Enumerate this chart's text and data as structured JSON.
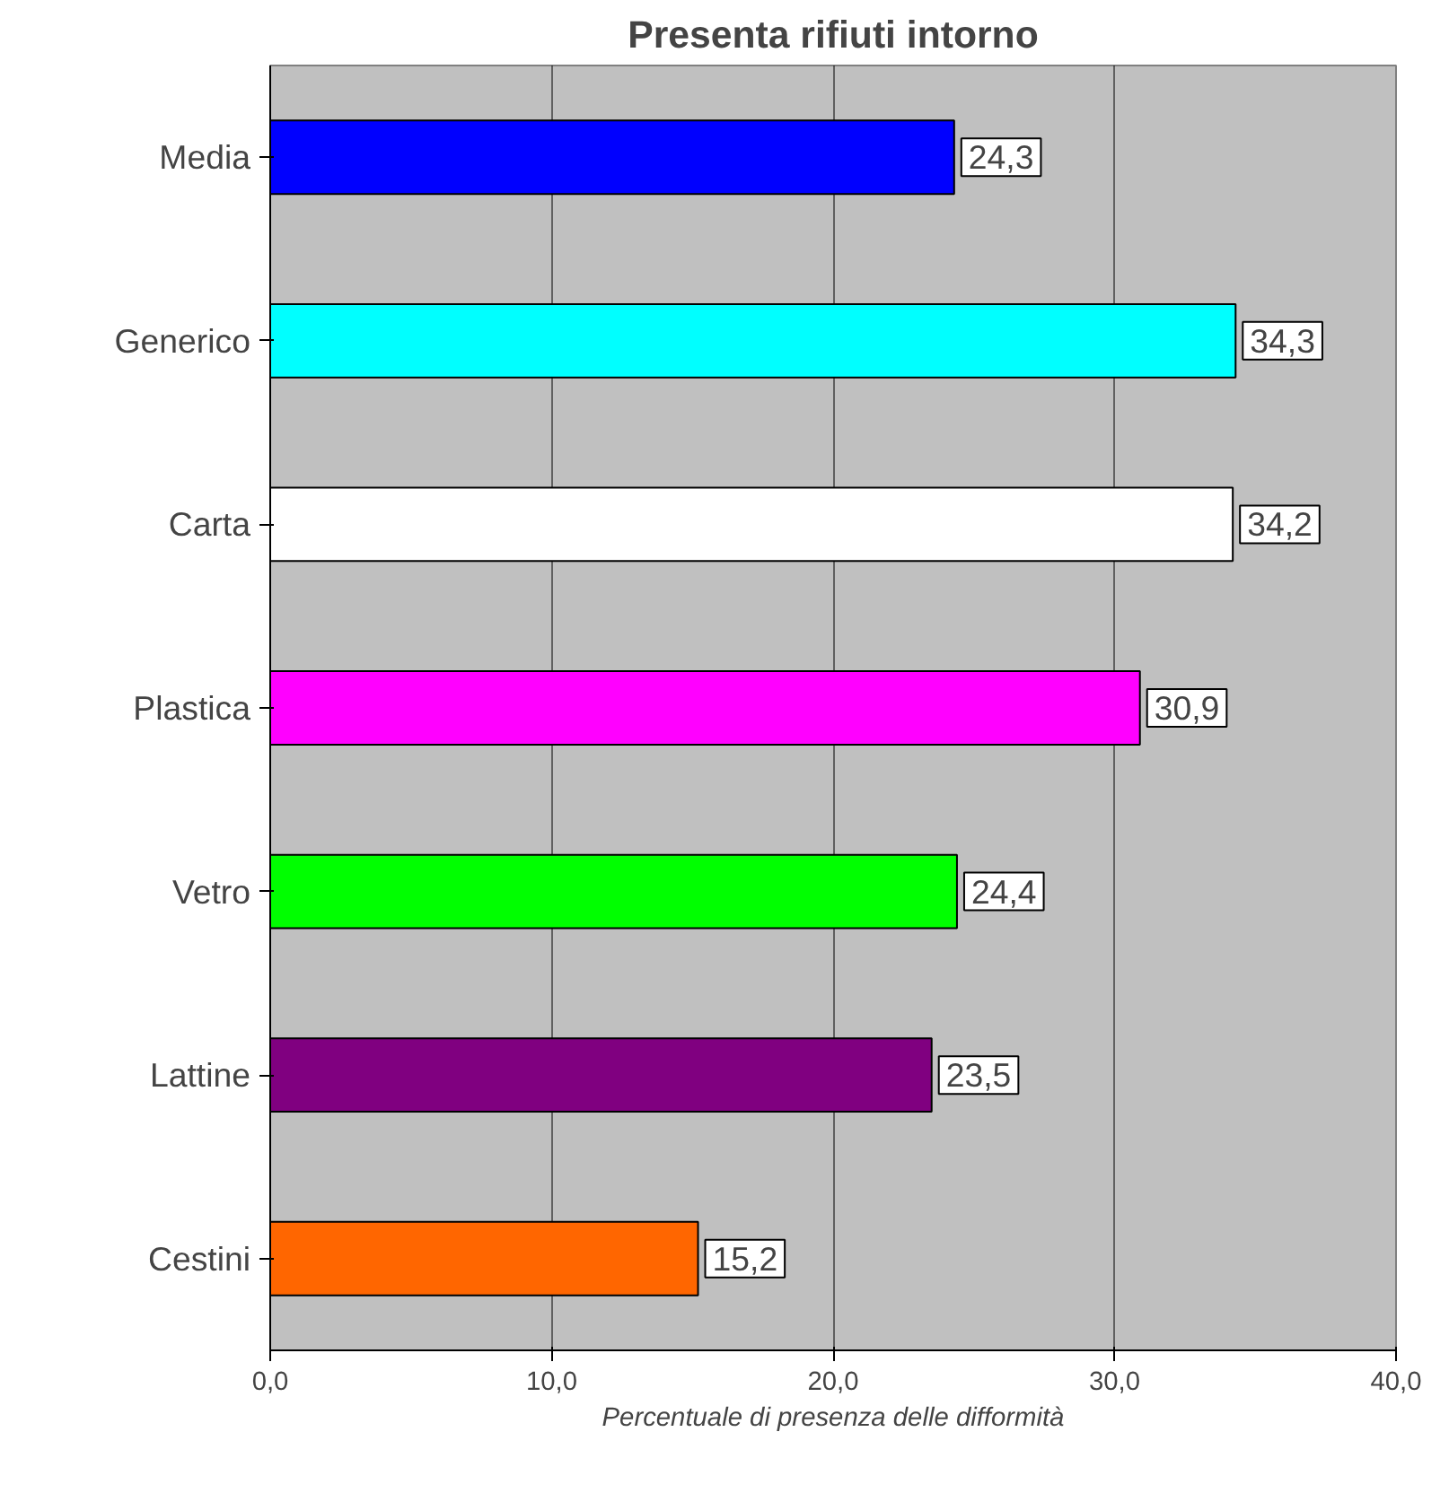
{
  "chart_data": {
    "type": "bar",
    "orientation": "horizontal",
    "title": "Presenta rifiuti intorno",
    "xlabel": "Percentuale di presenza delle difformità",
    "categories": [
      "Media",
      "Generico",
      "Carta",
      "Plastica",
      "Vetro",
      "Lattine",
      "Cestini"
    ],
    "values": [
      24.3,
      34.3,
      34.2,
      30.9,
      24.4,
      23.5,
      15.2
    ],
    "colors": [
      "#0000ff",
      "#00ffff",
      "#ffffff",
      "#ff00ff",
      "#00ff00",
      "#800080",
      "#ff6600"
    ],
    "value_labels": [
      "24,3",
      "34,3",
      "34,2",
      "30,9",
      "24,4",
      "23,5",
      "15,2"
    ],
    "xlim": [
      0,
      40
    ],
    "xticks": [
      {
        "value": 0,
        "label": "0,0"
      },
      {
        "value": 10,
        "label": "10,0"
      },
      {
        "value": 20,
        "label": "20,0"
      },
      {
        "value": 30,
        "label": "30,0"
      },
      {
        "value": 40,
        "label": "40,0"
      }
    ],
    "grid": "x"
  }
}
